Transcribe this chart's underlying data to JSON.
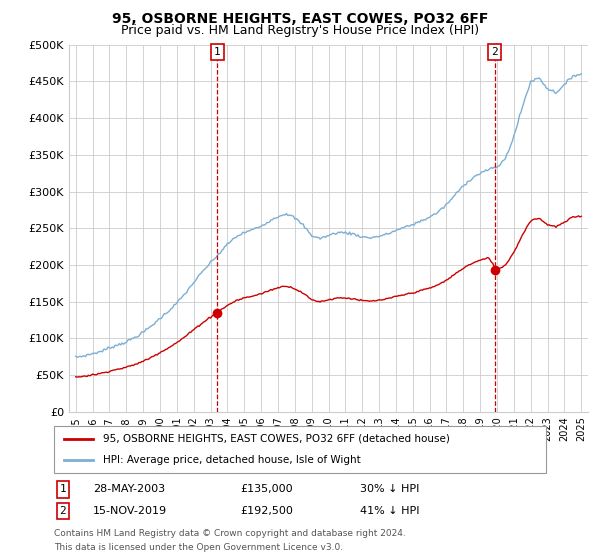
{
  "title": "95, OSBORNE HEIGHTS, EAST COWES, PO32 6FF",
  "subtitle": "Price paid vs. HM Land Registry's House Price Index (HPI)",
  "legend_label_red": "95, OSBORNE HEIGHTS, EAST COWES, PO32 6FF (detached house)",
  "legend_label_blue": "HPI: Average price, detached house, Isle of Wight",
  "footnote1": "Contains HM Land Registry data © Crown copyright and database right 2024.",
  "footnote2": "This data is licensed under the Open Government Licence v3.0.",
  "transaction1_date": "28-MAY-2003",
  "transaction1_price": "£135,000",
  "transaction1_hpi": "30% ↓ HPI",
  "transaction2_date": "15-NOV-2019",
  "transaction2_price": "£192,500",
  "transaction2_hpi": "41% ↓ HPI",
  "transaction1_year": 2003.4,
  "transaction1_value": 135000,
  "transaction2_year": 2019.88,
  "transaction2_value": 192500,
  "ylim": [
    0,
    500000
  ],
  "xlim_left": 1994.6,
  "xlim_right": 2025.4,
  "yticks": [
    0,
    50000,
    100000,
    150000,
    200000,
    250000,
    300000,
    350000,
    400000,
    450000,
    500000
  ],
  "ytick_labels": [
    "£0",
    "£50K",
    "£100K",
    "£150K",
    "£200K",
    "£250K",
    "£300K",
    "£350K",
    "£400K",
    "£450K",
    "£500K"
  ],
  "xticks": [
    1995,
    1996,
    1997,
    1998,
    1999,
    2000,
    2001,
    2002,
    2003,
    2004,
    2005,
    2006,
    2007,
    2008,
    2009,
    2010,
    2011,
    2012,
    2013,
    2014,
    2015,
    2016,
    2017,
    2018,
    2019,
    2020,
    2021,
    2022,
    2023,
    2024,
    2025
  ],
  "background_color": "#ffffff",
  "grid_color": "#cccccc",
  "red_color": "#cc0000",
  "blue_color": "#7bafd4",
  "title_fontsize": 10,
  "subtitle_fontsize": 9
}
